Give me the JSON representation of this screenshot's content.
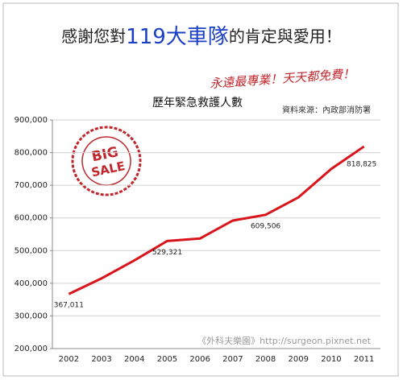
{
  "header": {
    "before": "感謝您對",
    "highlight": "119大車隊",
    "after": "的肯定與愛用！",
    "slogan": "永遠最專業！天天都免費！"
  },
  "stamp": {
    "top": "BIG",
    "bottom": "SALE"
  },
  "watermark": "《外科夫樂園》http://surgeon.pixnet.net",
  "chart_data": {
    "type": "line",
    "title": "歷年緊急救護人數",
    "source": "資料來源：內政部消防署",
    "categories": [
      "2002",
      "2003",
      "2004",
      "2005",
      "2006",
      "2007",
      "2008",
      "2009",
      "2010",
      "2011"
    ],
    "series": [
      {
        "name": "緊急救護人數",
        "color": "#d9141b",
        "values": [
          367011,
          415000,
          470000,
          529321,
          537000,
          592000,
          609506,
          663000,
          750000,
          818825
        ],
        "value_labels": [
          "367,011",
          null,
          null,
          "529,321",
          null,
          null,
          "609,506",
          null,
          null,
          "818,825"
        ]
      }
    ],
    "ylim": [
      200000,
      900000
    ],
    "yticks": [
      {
        "value": 200000,
        "label": "200,000"
      },
      {
        "value": 300000,
        "label": "300,000"
      },
      {
        "value": 400000,
        "label": "400,000"
      },
      {
        "value": 500000,
        "label": "500,000"
      },
      {
        "value": 600000,
        "label": "600,000"
      },
      {
        "value": 700000,
        "label": "700,000"
      },
      {
        "value": 800000,
        "label": "800,000"
      },
      {
        "value": 900000,
        "label": "900,000"
      }
    ],
    "grid": true
  }
}
